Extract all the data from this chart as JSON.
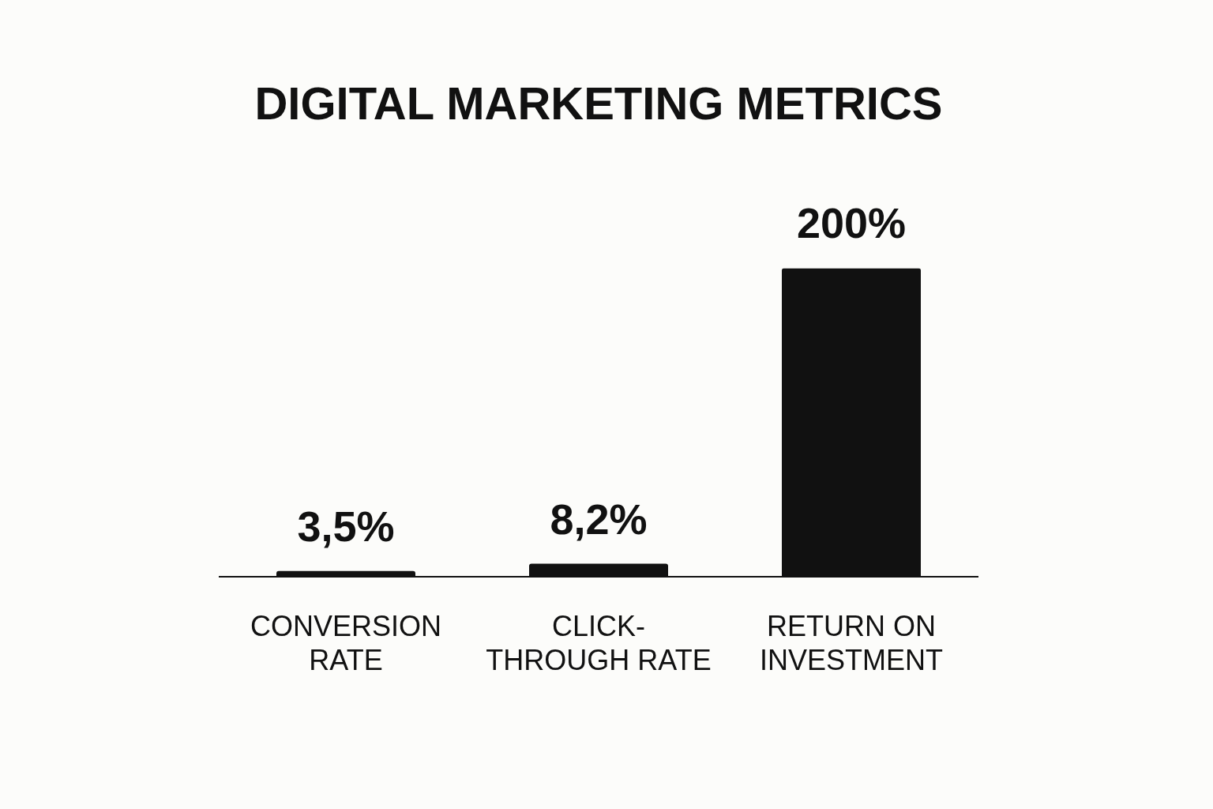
{
  "chart_data": {
    "type": "bar",
    "title": "DIGITAL MARKETING METRICS",
    "categories": [
      "CONVERSION RATE",
      "CLICK-THROUGH RATE",
      "RETURN ON INVESTMENT"
    ],
    "values": [
      3.5,
      8.2,
      200
    ],
    "value_labels": [
      "3,5%",
      "8,2%",
      "200%"
    ],
    "color": "#111111",
    "grid": false,
    "legend": false
  }
}
